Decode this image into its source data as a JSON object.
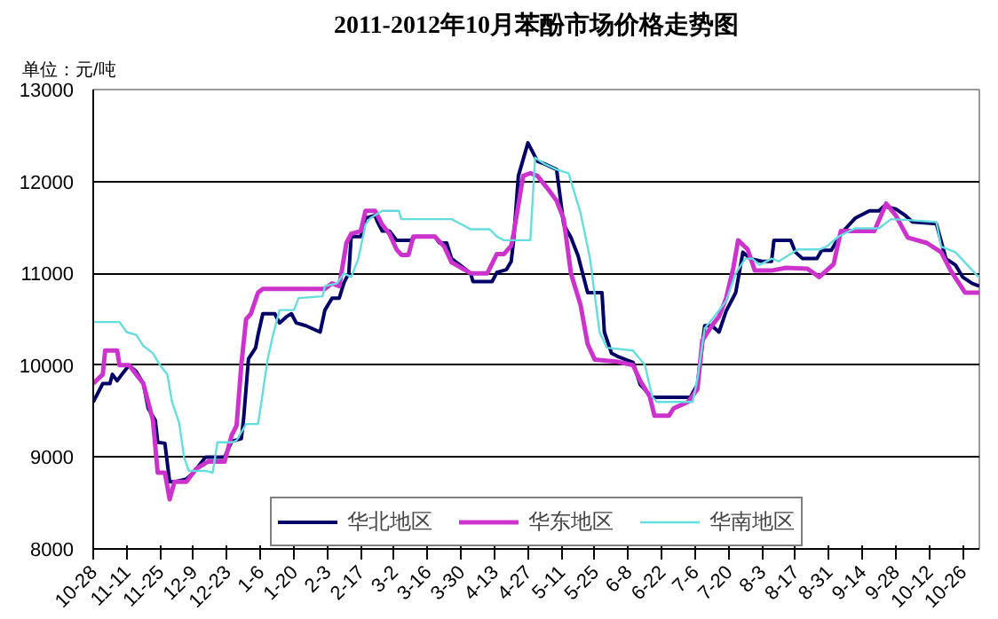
{
  "chart_data": {
    "type": "line",
    "title": "2011-2012年10月苯酚市场价格走势图",
    "annotations": [
      "单位：元/吨"
    ],
    "xlim": [
      "2011-10-28",
      "2012-11-02"
    ],
    "xticks": [
      {
        "value": "2011-10-28",
        "label": "10-28"
      },
      {
        "value": "2011-11-11",
        "label": "11-11"
      },
      {
        "value": "2011-11-25",
        "label": "11-25"
      },
      {
        "value": "2011-12-09",
        "label": "12-9"
      },
      {
        "value": "2011-12-23",
        "label": "12-23"
      },
      {
        "value": "2012-01-06",
        "label": "1-6"
      },
      {
        "value": "2012-01-20",
        "label": "1-20"
      },
      {
        "value": "2012-02-03",
        "label": "2-3"
      },
      {
        "value": "2012-02-17",
        "label": "2-17"
      },
      {
        "value": "2012-03-02",
        "label": "3-2"
      },
      {
        "value": "2012-03-16",
        "label": "3-16"
      },
      {
        "value": "2012-03-30",
        "label": "3-30"
      },
      {
        "value": "2012-04-13",
        "label": "4-13"
      },
      {
        "value": "2012-04-27",
        "label": "4-27"
      },
      {
        "value": "2012-05-11",
        "label": "5-11"
      },
      {
        "value": "2012-05-25",
        "label": "5-25"
      },
      {
        "value": "2012-06-08",
        "label": "6-8"
      },
      {
        "value": "2012-06-22",
        "label": "6-22"
      },
      {
        "value": "2012-07-06",
        "label": "7-6"
      },
      {
        "value": "2012-07-20",
        "label": "7-20"
      },
      {
        "value": "2012-08-03",
        "label": "8-3"
      },
      {
        "value": "2012-08-17",
        "label": "8-17"
      },
      {
        "value": "2012-08-31",
        "label": "8-31"
      },
      {
        "value": "2012-09-14",
        "label": "9-14"
      },
      {
        "value": "2012-09-28",
        "label": "9-28"
      },
      {
        "value": "2012-10-12",
        "label": "10-12"
      },
      {
        "value": "2012-10-26",
        "label": "10-26"
      }
    ],
    "ylim": [
      8000,
      13000
    ],
    "yticks": [
      8000,
      9000,
      10000,
      11000,
      12000,
      13000
    ],
    "grid": "y",
    "legend": "bottom",
    "marker": "none",
    "line_style": "solid",
    "series": [
      {
        "name": "华北地区",
        "color": "#000066",
        "x": [
          "2011-10-28",
          "2011-11-01",
          "2011-11-04",
          "2011-11-05",
          "2011-11-07",
          "2011-11-09",
          "2011-11-12",
          "2011-11-15",
          "2011-11-18",
          "2011-11-20",
          "2011-11-23",
          "2011-11-24",
          "2011-11-27",
          "2011-11-29",
          "2011-12-01",
          "2011-12-06",
          "2011-12-09",
          "2011-12-14",
          "2011-12-22",
          "2011-12-25",
          "2011-12-29",
          "2011-12-30",
          "2012-01-01",
          "2012-01-04",
          "2012-01-05",
          "2012-01-07",
          "2012-01-12",
          "2012-01-14",
          "2012-01-17",
          "2012-01-19",
          "2012-01-21",
          "2012-01-25",
          "2012-01-31",
          "2012-02-02",
          "2012-02-05",
          "2012-02-08",
          "2012-02-10",
          "2012-02-12",
          "2012-02-13",
          "2012-02-17",
          "2012-02-19",
          "2012-02-23",
          "2012-02-24",
          "2012-02-26",
          "2012-02-29",
          "2012-03-03",
          "2012-03-09",
          "2012-03-11",
          "2012-03-19",
          "2012-03-21",
          "2012-03-24",
          "2012-03-26",
          "2012-04-03",
          "2012-04-04",
          "2012-04-12",
          "2012-04-14",
          "2012-04-18",
          "2012-04-20",
          "2012-04-21",
          "2012-04-23",
          "2012-04-27",
          "2012-05-01",
          "2012-05-04",
          "2012-05-09",
          "2012-05-12",
          "2012-05-15",
          "2012-05-18",
          "2012-05-22",
          "2012-05-28",
          "2012-05-29",
          "2012-06-01",
          "2012-06-04",
          "2012-06-07",
          "2012-06-10",
          "2012-06-13",
          "2012-06-18",
          "2012-07-04",
          "2012-07-07",
          "2012-07-10",
          "2012-07-13",
          "2012-07-16",
          "2012-07-19",
          "2012-07-23",
          "2012-07-26",
          "2012-07-29",
          "2012-08-03",
          "2012-08-07",
          "2012-08-08",
          "2012-08-15",
          "2012-08-17",
          "2012-08-20",
          "2012-08-26",
          "2012-08-28",
          "2012-09-01",
          "2012-09-05",
          "2012-09-11",
          "2012-09-17",
          "2012-09-21",
          "2012-09-23",
          "2012-09-28",
          "2012-10-02",
          "2012-10-05",
          "2012-10-15",
          "2012-10-19",
          "2012-10-23",
          "2012-10-26",
          "2012-10-30",
          "2012-11-02"
        ],
        "values": [
          9600,
          9800,
          9800,
          9900,
          9830,
          9900,
          10000,
          9930,
          9800,
          9530,
          9400,
          9160,
          9150,
          8730,
          8730,
          8760,
          8830,
          9000,
          9000,
          9170,
          9200,
          9430,
          10070,
          10190,
          10330,
          10560,
          10560,
          10460,
          10530,
          10560,
          10460,
          10430,
          10360,
          10600,
          10730,
          10730,
          10900,
          11000,
          11400,
          11400,
          11600,
          11630,
          11560,
          11460,
          11460,
          11360,
          11360,
          11400,
          11400,
          11330,
          11330,
          11160,
          11000,
          10910,
          10910,
          11010,
          11040,
          11130,
          11360,
          12060,
          12420,
          12220,
          12190,
          12130,
          11530,
          11390,
          11190,
          10790,
          10790,
          10360,
          10130,
          10090,
          10060,
          10030,
          9790,
          9650,
          9650,
          9790,
          10430,
          10430,
          10360,
          10590,
          10790,
          11230,
          11160,
          11130,
          11130,
          11360,
          11360,
          11230,
          11160,
          11160,
          11250,
          11250,
          11430,
          11600,
          11680,
          11680,
          11730,
          11700,
          11630,
          11560,
          11540,
          11160,
          11090,
          10960,
          10890,
          10860
        ]
      },
      {
        "name": "华东地区",
        "color": "#cc33cc",
        "x": [
          "2011-10-28",
          "2011-11-01",
          "2011-11-02",
          "2011-11-07",
          "2011-11-08",
          "2011-11-12",
          "2011-11-15",
          "2011-11-18",
          "2011-11-22",
          "2011-11-24",
          "2011-11-27",
          "2011-11-29",
          "2011-12-01",
          "2011-12-06",
          "2011-12-10",
          "2011-12-15",
          "2011-12-22",
          "2011-12-25",
          "2011-12-27",
          "2011-12-29",
          "2011-12-31",
          "2012-01-02",
          "2012-01-05",
          "2012-01-07",
          "2012-02-02",
          "2012-02-05",
          "2012-02-08",
          "2012-02-11",
          "2012-02-13",
          "2012-02-17",
          "2012-02-19",
          "2012-02-23",
          "2012-02-26",
          "2012-02-29",
          "2012-03-03",
          "2012-03-05",
          "2012-03-08",
          "2012-03-10",
          "2012-03-19",
          "2012-03-23",
          "2012-03-26",
          "2012-04-03",
          "2012-04-10",
          "2012-04-14",
          "2012-04-17",
          "2012-04-20",
          "2012-04-21",
          "2012-04-25",
          "2012-04-28",
          "2012-05-01",
          "2012-05-05",
          "2012-05-09",
          "2012-05-12",
          "2012-05-15",
          "2012-05-19",
          "2012-05-22",
          "2012-05-25",
          "2012-06-03",
          "2012-06-10",
          "2012-06-13",
          "2012-06-17",
          "2012-06-19",
          "2012-06-25",
          "2012-06-27",
          "2012-07-03",
          "2012-07-07",
          "2012-07-09",
          "2012-07-13",
          "2012-07-16",
          "2012-07-19",
          "2012-07-22",
          "2012-07-24",
          "2012-07-28",
          "2012-07-31",
          "2012-08-07",
          "2012-08-13",
          "2012-08-22",
          "2012-08-27",
          "2012-08-30",
          "2012-09-02",
          "2012-09-05",
          "2012-09-19",
          "2012-09-24",
          "2012-09-28",
          "2012-10-03",
          "2012-10-11",
          "2012-10-17",
          "2012-10-21",
          "2012-10-27",
          "2012-11-02"
        ],
        "values": [
          9800,
          9900,
          10160,
          10160,
          10000,
          10000,
          9900,
          9800,
          9400,
          8830,
          8830,
          8540,
          8730,
          8730,
          8870,
          8950,
          8950,
          9240,
          9340,
          10000,
          10500,
          10560,
          10790,
          10830,
          10830,
          10890,
          10860,
          11330,
          11430,
          11460,
          11680,
          11680,
          11530,
          11430,
          11260,
          11200,
          11200,
          11400,
          11400,
          11290,
          11120,
          11000,
          11000,
          11210,
          11210,
          11300,
          11430,
          12060,
          12090,
          12060,
          11930,
          11790,
          11590,
          11000,
          10660,
          10230,
          10060,
          10040,
          10000,
          9830,
          9660,
          9450,
          9450,
          9530,
          9600,
          9740,
          10270,
          10430,
          10530,
          10730,
          11060,
          11360,
          11260,
          11030,
          11030,
          11060,
          11050,
          10960,
          11030,
          11100,
          11460,
          11460,
          11760,
          11630,
          11390,
          11330,
          11230,
          11030,
          10790,
          10790
        ]
      },
      {
        "name": "华南地区",
        "color": "#66dddd",
        "x": [
          "2011-10-28",
          "2011-11-08",
          "2011-11-11",
          "2011-11-15",
          "2011-11-18",
          "2011-11-22",
          "2011-11-25",
          "2011-11-28",
          "2011-11-30",
          "2011-12-03",
          "2011-12-05",
          "2011-12-07",
          "2011-12-14",
          "2011-12-17",
          "2011-12-19",
          "2011-12-25",
          "2011-12-27",
          "2011-12-31",
          "2012-01-05",
          "2012-01-06",
          "2012-01-09",
          "2012-01-11",
          "2012-01-14",
          "2012-01-20",
          "2012-01-22",
          "2012-02-01",
          "2012-02-02",
          "2012-02-07",
          "2012-02-10",
          "2012-02-13",
          "2012-02-16",
          "2012-02-19",
          "2012-02-21",
          "2012-02-26",
          "2012-03-04",
          "2012-03-05",
          "2012-03-26",
          "2012-04-03",
          "2012-04-11",
          "2012-04-14",
          "2012-04-17",
          "2012-04-28",
          "2012-04-30",
          "2012-05-04",
          "2012-05-09",
          "2012-05-14",
          "2012-05-19",
          "2012-05-23",
          "2012-05-27",
          "2012-05-30",
          "2012-06-10",
          "2012-06-15",
          "2012-06-18",
          "2012-06-20",
          "2012-07-05",
          "2012-07-07",
          "2012-07-10",
          "2012-07-14",
          "2012-07-19",
          "2012-07-23",
          "2012-07-27",
          "2012-07-30",
          "2012-08-02",
          "2012-08-07",
          "2012-08-10",
          "2012-08-18",
          "2012-08-27",
          "2012-08-30",
          "2012-09-04",
          "2012-09-11",
          "2012-09-21",
          "2012-09-26",
          "2012-10-03",
          "2012-10-15",
          "2012-10-17",
          "2012-10-23",
          "2012-10-28",
          "2012-11-02"
        ],
        "values": [
          10470,
          10470,
          10360,
          10330,
          10210,
          10130,
          10000,
          9900,
          9600,
          9370,
          9000,
          8850,
          8850,
          8830,
          9160,
          9160,
          9180,
          9360,
          9360,
          9530,
          10060,
          10300,
          10600,
          10600,
          10730,
          10750,
          10860,
          10890,
          11000,
          10960,
          11160,
          11530,
          11600,
          11680,
          11680,
          11590,
          11590,
          11480,
          11480,
          11400,
          11360,
          11360,
          12260,
          12190,
          12130,
          12090,
          11660,
          11160,
          10360,
          10190,
          10160,
          10000,
          9660,
          9600,
          9600,
          9860,
          10400,
          10530,
          10700,
          11000,
          11160,
          11160,
          11090,
          11160,
          11130,
          11260,
          11260,
          11290,
          11400,
          11490,
          11490,
          11590,
          11580,
          11560,
          11290,
          11230,
          11090,
          10950
        ]
      }
    ]
  }
}
